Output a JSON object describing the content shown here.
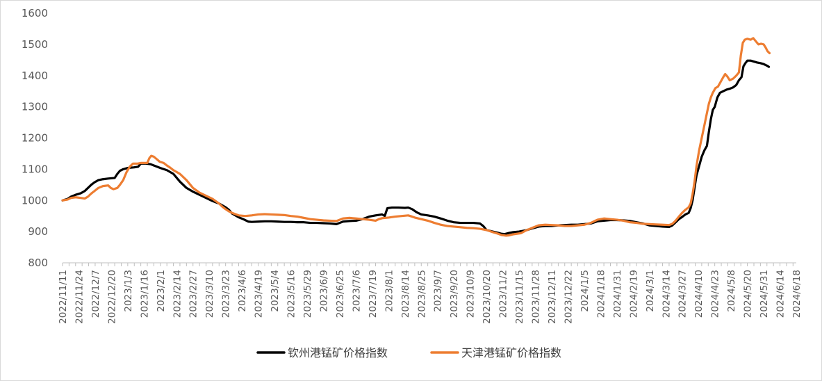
{
  "chart_data": {
    "type": "line",
    "title": "",
    "xlabel": "",
    "ylabel": "",
    "ylim": [
      800,
      1600
    ],
    "yticks": [
      800,
      900,
      1000,
      1100,
      1200,
      1300,
      1400,
      1500,
      1600
    ],
    "x_tick_labels": [
      "2022/11/11",
      "2022/11/24",
      "2022/12/7",
      "2022/12/20",
      "2023/1/3",
      "2023/1/16",
      "2023/2/1",
      "2023/2/14",
      "2023/2/27",
      "2023/3/10",
      "2023/3/23",
      "2023/4/6",
      "2023/4/19",
      "2023/5/4",
      "2023/5/16",
      "2023/5/29",
      "2023/6/9",
      "2023/6/25",
      "2023/7/6",
      "2023/7/19",
      "2023/8/1",
      "2023/8/14",
      "2023/8/25",
      "2023/9/7",
      "2023/9/20",
      "2023/10/9",
      "2023/10/20",
      "2023/11/2",
      "2023/11/15",
      "2023/11/28",
      "2023/12/11",
      "2023/12/22",
      "2024/1/5",
      "2024/1/18",
      "2024/1/31",
      "2024/2/19",
      "2024/3/1",
      "2024/3/14",
      "2024/3/27",
      "2024/4/10",
      "2024/4/23",
      "2024/5/8",
      "2024/5/20",
      "2024/5/31",
      "2024/6/14",
      "2024/6/18"
    ],
    "grid": false,
    "legend_position": "bottom",
    "series": [
      {
        "name": "钦州港锰矿价格指数",
        "color": "#000000",
        "points": [
          [
            0,
            1000
          ],
          [
            0.8,
            1005
          ],
          [
            1.3,
            1012
          ],
          [
            2,
            1018
          ],
          [
            2.8,
            1023
          ],
          [
            3.4,
            1030
          ],
          [
            3.9,
            1040
          ],
          [
            4.4,
            1050
          ],
          [
            4.9,
            1058
          ],
          [
            5.5,
            1065
          ],
          [
            6.2,
            1068
          ],
          [
            7,
            1070
          ],
          [
            8,
            1072
          ],
          [
            8.4,
            1085
          ],
          [
            8.8,
            1095
          ],
          [
            9.3,
            1100
          ],
          [
            10,
            1104
          ],
          [
            11,
            1106
          ],
          [
            11.6,
            1108
          ],
          [
            12,
            1118
          ],
          [
            12.8,
            1118
          ],
          [
            13.5,
            1116
          ],
          [
            14,
            1112
          ],
          [
            15,
            1104
          ],
          [
            16,
            1097
          ],
          [
            17,
            1085
          ],
          [
            18,
            1060
          ],
          [
            19,
            1040
          ],
          [
            20,
            1028
          ],
          [
            21,
            1018
          ],
          [
            22,
            1008
          ],
          [
            23,
            998
          ],
          [
            24,
            990
          ],
          [
            25,
            978
          ],
          [
            25.5,
            970
          ],
          [
            26,
            958
          ],
          [
            27,
            946
          ],
          [
            27.7,
            940
          ],
          [
            28.5,
            932
          ],
          [
            29,
            931
          ],
          [
            30,
            932
          ],
          [
            31,
            933
          ],
          [
            32,
            933
          ],
          [
            33,
            932
          ],
          [
            34,
            931
          ],
          [
            35,
            931
          ],
          [
            36,
            930
          ],
          [
            37,
            930
          ],
          [
            38,
            928
          ],
          [
            39,
            928
          ],
          [
            40,
            927
          ],
          [
            41,
            926
          ],
          [
            42,
            924
          ],
          [
            42.5,
            928
          ],
          [
            43,
            932
          ],
          [
            44,
            934
          ],
          [
            45,
            935
          ],
          [
            46,
            940
          ],
          [
            47,
            948
          ],
          [
            48,
            952
          ],
          [
            49,
            955
          ],
          [
            49.4,
            950
          ],
          [
            49.8,
            975
          ],
          [
            50.5,
            977
          ],
          [
            51.5,
            977
          ],
          [
            52.5,
            976
          ],
          [
            53,
            977
          ],
          [
            53.6,
            972
          ],
          [
            54.3,
            962
          ],
          [
            55,
            955
          ],
          [
            56,
            952
          ],
          [
            57,
            948
          ],
          [
            58,
            942
          ],
          [
            59,
            935
          ],
          [
            60,
            930
          ],
          [
            61,
            928
          ],
          [
            62,
            928
          ],
          [
            63,
            928
          ],
          [
            64,
            926
          ],
          [
            64.5,
            918
          ],
          [
            65,
            905
          ],
          [
            66,
            900
          ],
          [
            66.8,
            896
          ],
          [
            67.3,
            893
          ],
          [
            67.8,
            892
          ],
          [
            68.5,
            896
          ],
          [
            69,
            898
          ],
          [
            70,
            900
          ],
          [
            71,
            904
          ],
          [
            72,
            910
          ],
          [
            73,
            916
          ],
          [
            74,
            918
          ],
          [
            75,
            918
          ],
          [
            76,
            920
          ],
          [
            77,
            921
          ],
          [
            78,
            922
          ],
          [
            79,
            922
          ],
          [
            80,
            924
          ],
          [
            81,
            926
          ],
          [
            82,
            933
          ],
          [
            83,
            935
          ],
          [
            84,
            937
          ],
          [
            85,
            937
          ],
          [
            86,
            936
          ],
          [
            87,
            934
          ],
          [
            88,
            930
          ],
          [
            89,
            926
          ],
          [
            90,
            920
          ],
          [
            91,
            918
          ],
          [
            92,
            916
          ],
          [
            93,
            915
          ],
          [
            93.5,
            920
          ],
          [
            94,
            930
          ],
          [
            94.5,
            940
          ],
          [
            95,
            947
          ],
          [
            95.5,
            955
          ],
          [
            96,
            960
          ],
          [
            96.3,
            975
          ],
          [
            96.6,
            1000
          ],
          [
            96.9,
            1040
          ],
          [
            97.2,
            1080
          ],
          [
            97.6,
            1110
          ],
          [
            98,
            1140
          ],
          [
            98.4,
            1160
          ],
          [
            98.8,
            1175
          ],
          [
            99.1,
            1220
          ],
          [
            99.4,
            1260
          ],
          [
            99.7,
            1290
          ],
          [
            100,
            1300
          ],
          [
            100.4,
            1330
          ],
          [
            100.8,
            1345
          ],
          [
            101.3,
            1350
          ],
          [
            101.8,
            1355
          ],
          [
            102.3,
            1358
          ],
          [
            102.8,
            1362
          ],
          [
            103.3,
            1370
          ],
          [
            103.7,
            1385
          ],
          [
            104.1,
            1395
          ],
          [
            104.4,
            1430
          ],
          [
            104.7,
            1440
          ],
          [
            105,
            1448
          ],
          [
            105.5,
            1448
          ],
          [
            106,
            1445
          ],
          [
            106.5,
            1442
          ],
          [
            107,
            1440
          ],
          [
            107.5,
            1437
          ],
          [
            108,
            1432
          ],
          [
            108.3,
            1428
          ]
        ]
      },
      {
        "name": "天津港锰矿价格指数",
        "color": "#ED7D31",
        "points": [
          [
            0,
            1000
          ],
          [
            0.8,
            1003
          ],
          [
            1.3,
            1008
          ],
          [
            2,
            1010
          ],
          [
            2.8,
            1008
          ],
          [
            3.4,
            1006
          ],
          [
            3.9,
            1012
          ],
          [
            4.4,
            1022
          ],
          [
            4.9,
            1030
          ],
          [
            5.5,
            1040
          ],
          [
            6.2,
            1046
          ],
          [
            7,
            1048
          ],
          [
            7.4,
            1040
          ],
          [
            7.8,
            1036
          ],
          [
            8.4,
            1040
          ],
          [
            8.8,
            1050
          ],
          [
            9.3,
            1065
          ],
          [
            9.8,
            1090
          ],
          [
            10.3,
            1108
          ],
          [
            10.8,
            1118
          ],
          [
            11.5,
            1118
          ],
          [
            12,
            1120
          ],
          [
            12.5,
            1120
          ],
          [
            13,
            1120
          ],
          [
            13.3,
            1135
          ],
          [
            13.6,
            1143
          ],
          [
            14,
            1140
          ],
          [
            14.4,
            1133
          ],
          [
            14.9,
            1124
          ],
          [
            15.5,
            1120
          ],
          [
            16,
            1112
          ],
          [
            16.5,
            1105
          ],
          [
            17,
            1097
          ],
          [
            18,
            1085
          ],
          [
            19,
            1065
          ],
          [
            20,
            1040
          ],
          [
            21,
            1025
          ],
          [
            22,
            1015
          ],
          [
            23,
            1005
          ],
          [
            24,
            990
          ],
          [
            24.5,
            980
          ],
          [
            25,
            972
          ],
          [
            25.5,
            965
          ],
          [
            26,
            960
          ],
          [
            27,
            952
          ],
          [
            28,
            950
          ],
          [
            29,
            952
          ],
          [
            30,
            955
          ],
          [
            31,
            956
          ],
          [
            32,
            955
          ],
          [
            33,
            954
          ],
          [
            34,
            953
          ],
          [
            35,
            950
          ],
          [
            36,
            948
          ],
          [
            37,
            944
          ],
          [
            38,
            940
          ],
          [
            39,
            938
          ],
          [
            40,
            936
          ],
          [
            41,
            935
          ],
          [
            42,
            934
          ],
          [
            43,
            942
          ],
          [
            44,
            944
          ],
          [
            45,
            942
          ],
          [
            46,
            940
          ],
          [
            47,
            938
          ],
          [
            48,
            935
          ],
          [
            48.5,
            940
          ],
          [
            49,
            943
          ],
          [
            50,
            945
          ],
          [
            51,
            948
          ],
          [
            52,
            950
          ],
          [
            53,
            952
          ],
          [
            53.6,
            948
          ],
          [
            54,
            945
          ],
          [
            55,
            940
          ],
          [
            56,
            935
          ],
          [
            57,
            928
          ],
          [
            58,
            922
          ],
          [
            59,
            918
          ],
          [
            60,
            916
          ],
          [
            61,
            914
          ],
          [
            62,
            912
          ],
          [
            63,
            911
          ],
          [
            64,
            909
          ],
          [
            65,
            905
          ],
          [
            66,
            898
          ],
          [
            66.8,
            893
          ],
          [
            67.3,
            889
          ],
          [
            68,
            887
          ],
          [
            68.5,
            888
          ],
          [
            69,
            891
          ],
          [
            69.6,
            893
          ],
          [
            70.3,
            895
          ],
          [
            71,
            903
          ],
          [
            72,
            912
          ],
          [
            73,
            920
          ],
          [
            74,
            922
          ],
          [
            75,
            921
          ],
          [
            76,
            920
          ],
          [
            77,
            918
          ],
          [
            78,
            918
          ],
          [
            79,
            920
          ],
          [
            80,
            922
          ],
          [
            81,
            928
          ],
          [
            82,
            938
          ],
          [
            83,
            942
          ],
          [
            84,
            940
          ],
          [
            85,
            938
          ],
          [
            86,
            935
          ],
          [
            87,
            930
          ],
          [
            88,
            928
          ],
          [
            89,
            925
          ],
          [
            90,
            924
          ],
          [
            91,
            923
          ],
          [
            92,
            922
          ],
          [
            93,
            921
          ],
          [
            93.5,
            925
          ],
          [
            94,
            935
          ],
          [
            94.5,
            948
          ],
          [
            95,
            960
          ],
          [
            95.5,
            970
          ],
          [
            96,
            978
          ],
          [
            96.3,
            990
          ],
          [
            96.6,
            1020
          ],
          [
            96.9,
            1060
          ],
          [
            97.2,
            1110
          ],
          [
            97.6,
            1160
          ],
          [
            98,
            1200
          ],
          [
            98.4,
            1240
          ],
          [
            98.8,
            1280
          ],
          [
            99.1,
            1310
          ],
          [
            99.4,
            1330
          ],
          [
            99.7,
            1345
          ],
          [
            100.1,
            1360
          ],
          [
            100.5,
            1365
          ],
          [
            100.9,
            1380
          ],
          [
            101.3,
            1395
          ],
          [
            101.6,
            1405
          ],
          [
            101.9,
            1398
          ],
          [
            102.3,
            1385
          ],
          [
            102.8,
            1390
          ],
          [
            103.3,
            1400
          ],
          [
            103.7,
            1410
          ],
          [
            104,
            1465
          ],
          [
            104.3,
            1505
          ],
          [
            104.6,
            1515
          ],
          [
            105,
            1518
          ],
          [
            105.5,
            1515
          ],
          [
            105.9,
            1520
          ],
          [
            106.3,
            1510
          ],
          [
            106.7,
            1500
          ],
          [
            107.1,
            1502
          ],
          [
            107.5,
            1500
          ],
          [
            107.8,
            1490
          ],
          [
            108.1,
            1478
          ],
          [
            108.4,
            1472
          ]
        ]
      }
    ]
  }
}
